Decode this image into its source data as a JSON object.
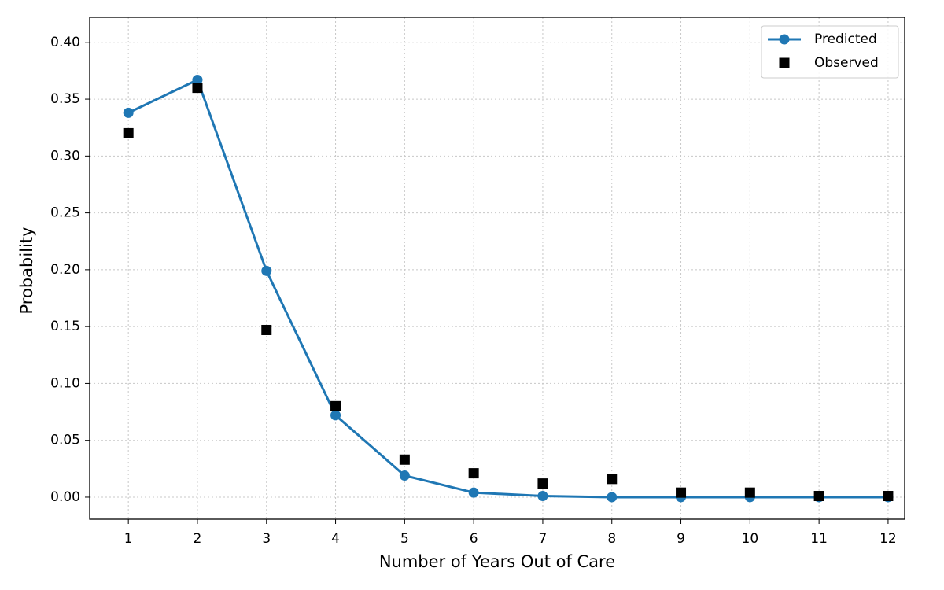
{
  "chart_data": {
    "type": "line",
    "x_label": "Number of Years Out of Care",
    "y_label": "Probability",
    "x": [
      1,
      2,
      3,
      4,
      5,
      6,
      7,
      8,
      9,
      10,
      11,
      12
    ],
    "series": [
      {
        "name": "Predicted",
        "color": "#1f77b4",
        "line": true,
        "marker": "circle",
        "values": [
          0.338,
          0.367,
          0.199,
          0.072,
          0.019,
          0.004,
          0.001,
          0.0,
          0.0,
          0.0,
          0.0,
          0.0
        ]
      },
      {
        "name": "Observed",
        "color": "#000000",
        "line": false,
        "marker": "square",
        "values": [
          0.32,
          0.36,
          0.147,
          0.08,
          0.033,
          0.021,
          0.012,
          0.016,
          0.004,
          0.004,
          0.001,
          0.001
        ]
      }
    ],
    "xlim": [
      0.44,
      12.24
    ],
    "ylim": [
      -0.0194,
      0.422
    ],
    "xticks": [
      1,
      2,
      3,
      4,
      5,
      6,
      7,
      8,
      9,
      10,
      11,
      12
    ],
    "yticks": [
      {
        "value": 0,
        "label": "0.00"
      },
      {
        "value": 0.05,
        "label": "0.05"
      },
      {
        "value": 0.1,
        "label": "0.10"
      },
      {
        "value": 0.15,
        "label": "0.15"
      },
      {
        "value": 0.2,
        "label": "0.20"
      },
      {
        "value": 0.25,
        "label": "0.25"
      },
      {
        "value": 0.3,
        "label": "0.30"
      },
      {
        "value": 0.35,
        "label": "0.35"
      },
      {
        "value": 0.4,
        "label": "0.40"
      }
    ],
    "grid": true,
    "legend": "upper right"
  }
}
